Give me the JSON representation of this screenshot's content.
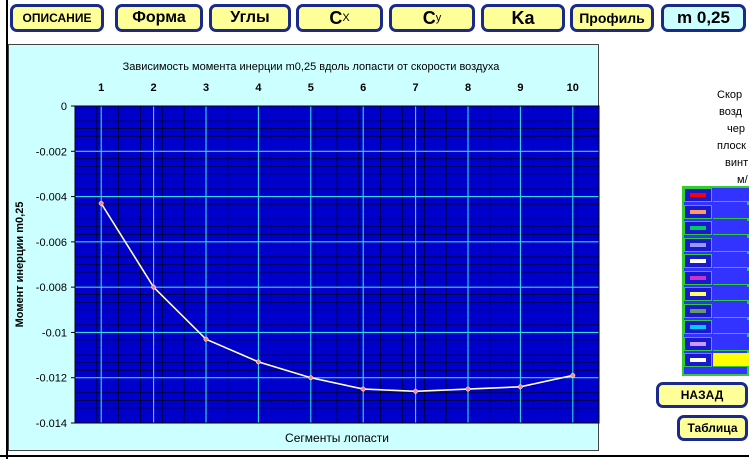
{
  "toolbar": {
    "tabs": [
      {
        "label": "ОПИСАНИЕ"
      },
      {
        "label": "Форма"
      },
      {
        "label": "Углы"
      },
      {
        "label": "C",
        "sub": "X"
      },
      {
        "label": "C",
        "sub": "y"
      },
      {
        "label": "Ka"
      },
      {
        "label": "Профиль"
      },
      {
        "label": "m 0,25"
      }
    ]
  },
  "chart_data": {
    "type": "line",
    "title": "Зависимость момента инерции  m0,25 вдоль лопасти от скорости воздуха",
    "xlabel": "Сегменты лопасти",
    "ylabel": "Момент инерции m0,25",
    "x": [
      1,
      2,
      3,
      4,
      5,
      6,
      7,
      8,
      9,
      10
    ],
    "x_ticks": [
      "1",
      "2",
      "3",
      "4",
      "5",
      "6",
      "7",
      "8",
      "9",
      "10"
    ],
    "y_ticks": [
      "0",
      "-0.002",
      "-0.004",
      "-0.006",
      "-0.008",
      "-0.01",
      "-0.012",
      "-0.014"
    ],
    "ylim": [
      -0.014,
      0
    ],
    "series": [
      {
        "values": [
          -0.0043,
          -0.008,
          -0.0103,
          -0.0113,
          -0.012,
          -0.0125,
          -0.0126,
          -0.0125,
          -0.0124,
          -0.0119
        ]
      }
    ],
    "x_axis_position": "top",
    "grid": true,
    "colors": {
      "plot_bg": "#0000cc",
      "grid_major": "#33dddd",
      "grid_minor": "#000000",
      "line": "#ffffcc",
      "marker": "#ff8888"
    }
  },
  "right_panel": {
    "text_lines": [
      "Скор",
      "возд",
      "чер",
      "плоск",
      "винт",
      "м/"
    ],
    "legend_colors": [
      "#ff0000",
      "#ff9966",
      "#00cc66",
      "#9999ff",
      "#ffffff",
      "#cc33cc",
      "#ffff66",
      "#669966",
      "#00ccff",
      "#cc99ff",
      "#ffffff"
    ],
    "back_label": "НАЗАД",
    "table_label": "Таблица"
  }
}
